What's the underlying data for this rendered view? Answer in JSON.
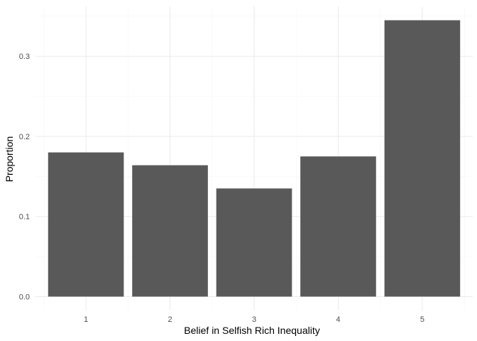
{
  "chart_data": {
    "type": "bar",
    "title": "",
    "xlabel": "Belief in Selfish Rich Inequality",
    "ylabel": "Proportion",
    "categories": [
      "1",
      "2",
      "3",
      "4",
      "5"
    ],
    "values": [
      0.18,
      0.164,
      0.135,
      0.175,
      0.345
    ],
    "ylim": [
      -0.0173,
      0.3623
    ],
    "yticks": [
      0.0,
      0.1,
      0.2,
      0.3
    ],
    "ytick_labels": [
      "0.0",
      "0.1",
      "0.2",
      "0.3"
    ],
    "grid": true,
    "bar_color": "#595959",
    "theme": "minimal"
  }
}
